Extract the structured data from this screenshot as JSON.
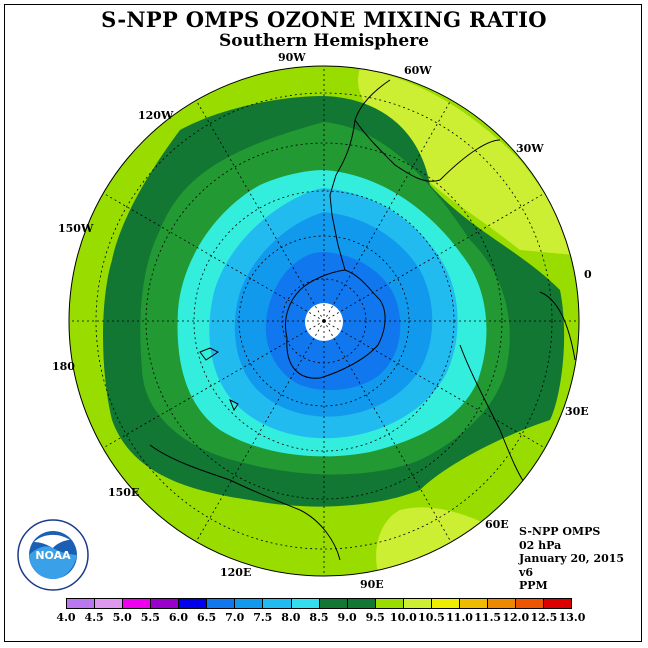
{
  "title": "S-NPP OMPS OZONE MIXING RATIO",
  "subtitle": "Southern Hemisphere",
  "info": {
    "instrument": "S-NPP OMPS",
    "level": "02 hPa",
    "date": "January 20, 2015",
    "version": "v6",
    "units": "PPM"
  },
  "logo": {
    "text": "NOAA",
    "ring_text": "NATIONAL OCEANIC AND ATMOSPHERIC ADMINISTRATION · U.S. DEPARTMENT OF COMMERCE"
  },
  "map": {
    "projection": "south-polar-stereographic",
    "longitude_labels": [
      "90W",
      "60W",
      "30W",
      "0",
      "30E",
      "60E",
      "90E",
      "120E",
      "150E",
      "180",
      "150W",
      "120W"
    ],
    "ozone_levels_center_to_edge_ppm": [
      6.5,
      7.0,
      7.5,
      8.0,
      8.5,
      9.0,
      9.5
    ]
  },
  "colorbar": {
    "ticks": [
      "4.0",
      "4.5",
      "5.0",
      "5.5",
      "6.0",
      "6.5",
      "7.0",
      "7.5",
      "8.0",
      "8.5",
      "9.0",
      "9.5",
      "10.0",
      "10.5",
      "11.0",
      "11.5",
      "12.0",
      "12.5",
      "13.0"
    ],
    "colors": [
      "#bb77ee",
      "#dd99ee",
      "#ee00ee",
      "#9900cc",
      "#0000ee",
      "#1177ee",
      "#1199ee",
      "#22bbf0",
      "#33ddee",
      "#117733",
      "#117733",
      "#99dd00",
      "#ccee33",
      "#eeee00",
      "#eebb00",
      "#ee8800",
      "#ee5500",
      "#dd0000",
      "#885533"
    ]
  }
}
